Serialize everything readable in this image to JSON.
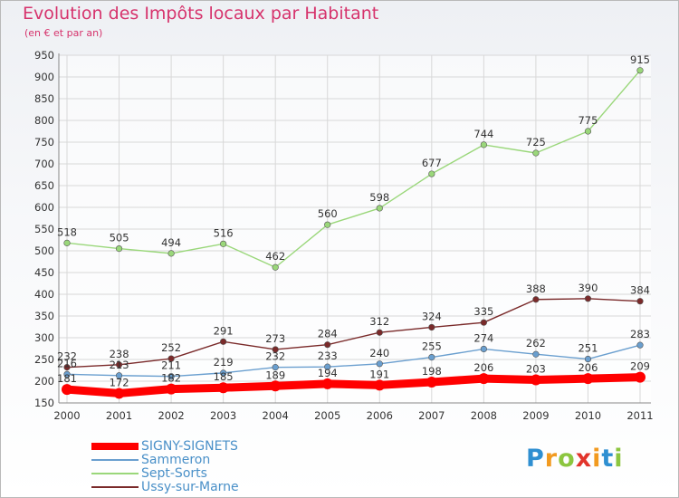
{
  "chart_data": {
    "type": "line",
    "title": "Evolution des Impôts locaux par Habitant",
    "subtitle": "(en € et par an)",
    "x": [
      "2000",
      "2001",
      "2002",
      "2003",
      "2004",
      "2005",
      "2006",
      "2007",
      "2008",
      "2009",
      "2010",
      "2011"
    ],
    "ylim": [
      150,
      950
    ],
    "yticks": [
      150,
      200,
      250,
      300,
      350,
      400,
      450,
      500,
      550,
      600,
      650,
      700,
      750,
      800,
      850,
      900,
      950
    ],
    "grid": true,
    "legend_position": "bottom-left",
    "series": [
      {
        "name": "SIGNY-SIGNETS",
        "color": "#ff0000",
        "values": [
          181,
          172,
          182,
          185,
          189,
          194,
          191,
          198,
          206,
          203,
          206,
          209
        ]
      },
      {
        "name": "Sammeron",
        "color": "#6a9fcf",
        "values": [
          216,
          213,
          211,
          219,
          232,
          233,
          240,
          255,
          274,
          262,
          251,
          283
        ]
      },
      {
        "name": "Sept-Sorts",
        "color": "#9ad77a",
        "values": [
          518,
          505,
          494,
          516,
          462,
          560,
          598,
          677,
          744,
          725,
          775,
          915
        ]
      },
      {
        "name": "Ussy-sur-Marne",
        "color": "#7a2a2a",
        "values": [
          232,
          238,
          252,
          291,
          273,
          284,
          312,
          324,
          335,
          388,
          390,
          384
        ]
      }
    ]
  },
  "logo": {
    "letters": [
      "P",
      "r",
      "o",
      "x",
      "i",
      "t",
      "i"
    ],
    "colors": [
      "#2f8fd1",
      "#f29a1f",
      "#8cc63f",
      "#e2342b",
      "#f29a1f",
      "#2f8fd1",
      "#8cc63f"
    ]
  }
}
